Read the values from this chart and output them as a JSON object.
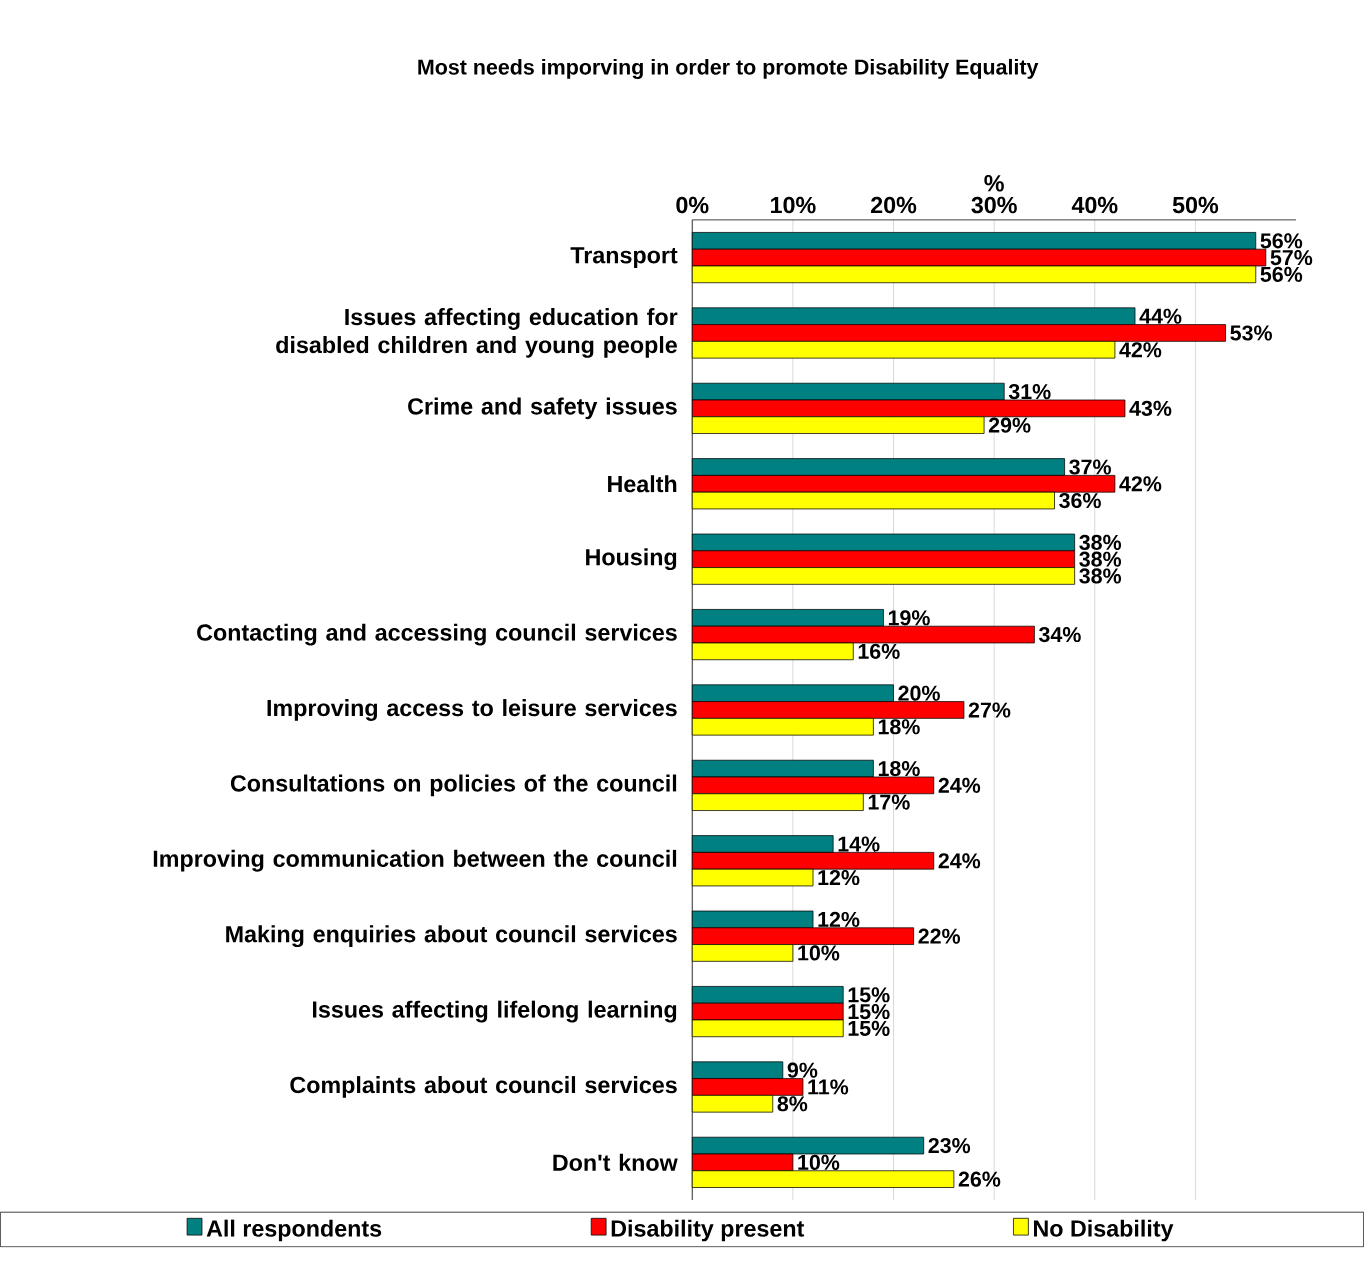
{
  "chart_data": {
    "type": "bar",
    "orientation": "horizontal",
    "title": "Most needs imporving in order to promote Disability Equality",
    "xlabel": "%",
    "categories": [
      "Transport",
      "Issues affecting education for disabled children and young people",
      "Crime and safety issues",
      "Health",
      "Housing",
      "Contacting and accessing council services",
      "Improving access to leisure services",
      "Consultations on policies of the council",
      "Improving communication between the council",
      "Making enquiries about council services",
      "Issues affecting lifelong learning",
      "Complaints about council services",
      "Don't know"
    ],
    "series": [
      {
        "name": "All respondents",
        "color": "#008080",
        "values": [
          56,
          44,
          31,
          37,
          38,
          19,
          20,
          18,
          14,
          12,
          15,
          9,
          23
        ],
        "value_labels": [
          "56%",
          "44%",
          "31%",
          "37%",
          "38%",
          "19%",
          "20%",
          "18%",
          "14%",
          "12%",
          "15%",
          "9%",
          "23%"
        ]
      },
      {
        "name": "Disability present",
        "color": "#ff0000",
        "values": [
          57,
          53,
          43,
          42,
          38,
          34,
          27,
          24,
          24,
          22,
          15,
          11,
          10
        ],
        "value_labels": [
          "57%",
          "53%",
          "43%",
          "42%",
          "38%",
          "34%",
          "27%",
          "24%",
          "24%",
          "22%",
          "15%",
          "11%",
          "10%"
        ]
      },
      {
        "name": "No Disability",
        "color": "#ffff00",
        "values": [
          56,
          42,
          29,
          36,
          38,
          16,
          18,
          17,
          12,
          10,
          15,
          8,
          26
        ],
        "value_labels": [
          "56%",
          "42%",
          "29%",
          "36%",
          "38%",
          "16%",
          "18%",
          "17%",
          "12%",
          "10%",
          "15%",
          "8%",
          "26%"
        ]
      }
    ],
    "xlim": [
      0,
      60
    ],
    "xticks": [
      {
        "value": 0,
        "label": "0%"
      },
      {
        "value": 10,
        "label": "10%"
      },
      {
        "value": 20,
        "label": "20%"
      },
      {
        "value": 30,
        "label": "30%"
      },
      {
        "value": 40,
        "label": "40%"
      },
      {
        "value": 50,
        "label": "50%"
      }
    ],
    "grid": "x",
    "legend": "bottom"
  }
}
